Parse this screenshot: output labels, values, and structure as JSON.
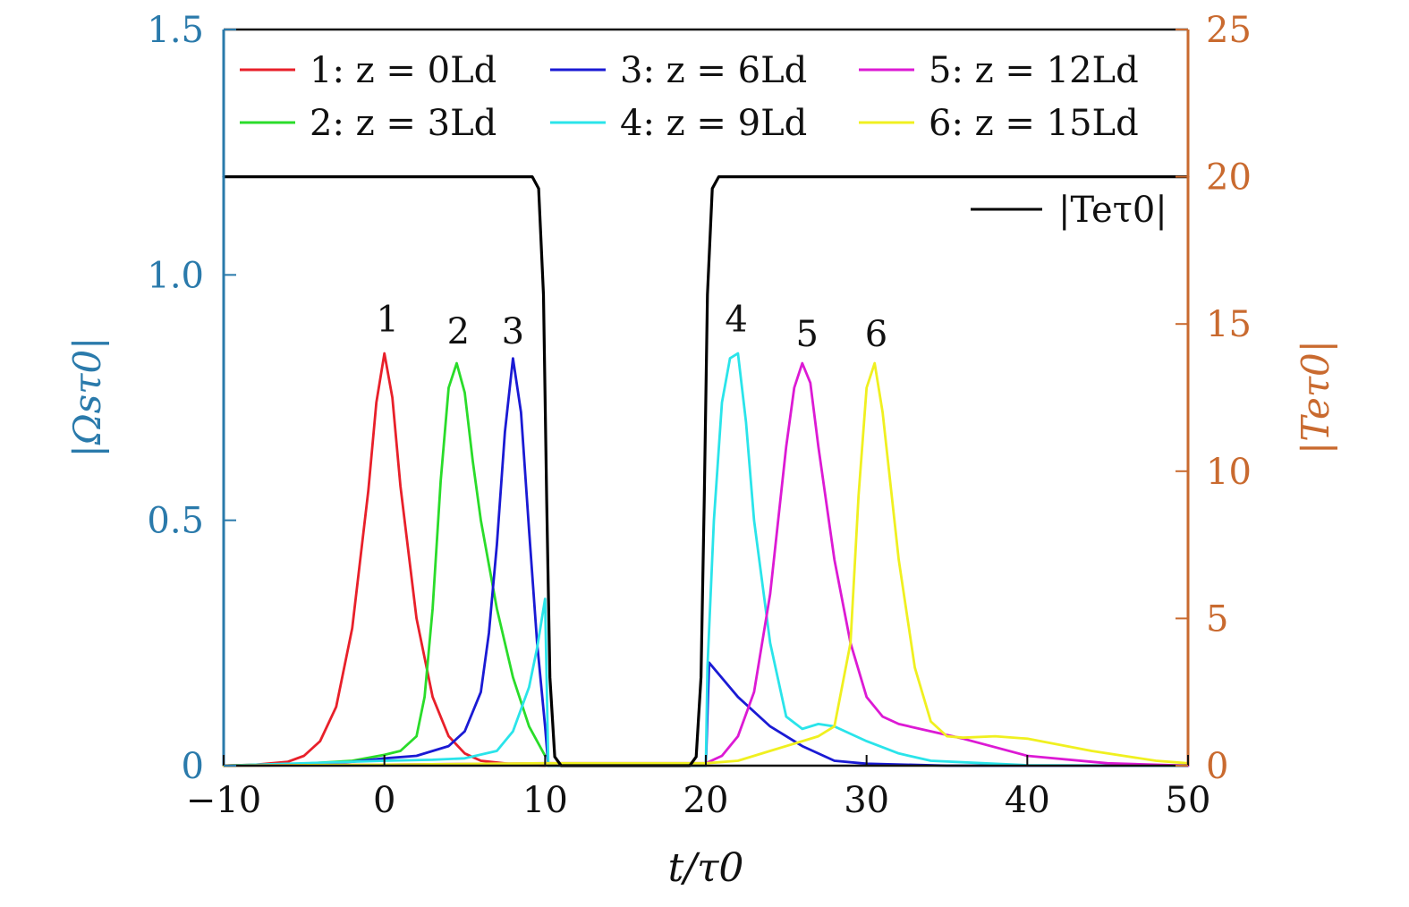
{
  "chart_data": {
    "type": "line",
    "xlabel": "t/τ0",
    "ylabel_left": "|Ωsτ0|",
    "ylabel_right": "|Teτ0|",
    "xlim": [
      -10,
      50
    ],
    "ylim_left": [
      0,
      1.5
    ],
    "ylim_right": [
      0,
      25
    ],
    "x_ticks": [
      -10,
      0,
      10,
      20,
      30,
      40,
      50
    ],
    "x_tick_labels": [
      "−10",
      "0",
      "10",
      "20",
      "30",
      "40",
      "50"
    ],
    "y_left_ticks": [
      0,
      0.5,
      1.0,
      1.5
    ],
    "y_left_tick_labels": [
      "0",
      "0.5",
      "1.0",
      "1.5"
    ],
    "y_right_ticks": [
      0,
      5,
      10,
      15,
      20,
      25
    ],
    "y_right_tick_labels": [
      "0",
      "5",
      "10",
      "15",
      "20",
      "25"
    ],
    "legend_placement": "top, two rows",
    "colors": {
      "left_axis": "#2a7aab",
      "right_axis": "#c96a2f"
    },
    "series": [
      {
        "name": "1: z = 0Ld",
        "label": "1",
        "color": "#e8202a",
        "axis": "left",
        "x": [
          -10,
          -8,
          -6,
          -5,
          -4,
          -3,
          -2,
          -1,
          -0.5,
          0,
          0.5,
          1,
          2,
          3,
          4,
          5,
          6,
          8,
          10
        ],
        "y": [
          0.0,
          0.002,
          0.008,
          0.02,
          0.05,
          0.12,
          0.28,
          0.56,
          0.74,
          0.84,
          0.75,
          0.57,
          0.3,
          0.14,
          0.06,
          0.025,
          0.01,
          0.003,
          0.0
        ]
      },
      {
        "name": "2: z = 3Ld",
        "label": "2",
        "color": "#2adc2a",
        "axis": "left",
        "x": [
          -10,
          -5,
          -2,
          0,
          1,
          2,
          2.5,
          3,
          3.5,
          4,
          4.5,
          5,
          5.5,
          6,
          7,
          8,
          9,
          10
        ],
        "y": [
          0.0,
          0.004,
          0.01,
          0.022,
          0.03,
          0.06,
          0.14,
          0.32,
          0.58,
          0.77,
          0.82,
          0.76,
          0.62,
          0.5,
          0.32,
          0.18,
          0.08,
          0.02
        ]
      },
      {
        "name": "3: z = 6Ld",
        "label": "3",
        "color": "#1a1ad4",
        "axis": "left",
        "x": [
          -10,
          -5,
          -2,
          0,
          2,
          4,
          5,
          6,
          6.5,
          7,
          7.5,
          8,
          8.5,
          9,
          9.5,
          10,
          10.2,
          20,
          20.2,
          22,
          24,
          26,
          28,
          30,
          35,
          50
        ],
        "y": [
          0.0,
          0.002,
          0.008,
          0.015,
          0.02,
          0.04,
          0.07,
          0.15,
          0.27,
          0.45,
          0.68,
          0.83,
          0.72,
          0.48,
          0.25,
          0.08,
          0.0,
          0.0,
          0.21,
          0.14,
          0.08,
          0.04,
          0.01,
          0.004,
          0.0,
          0.0
        ]
      },
      {
        "name": "4: z = 9Ld",
        "label": "4",
        "color": "#2ae4ea",
        "axis": "left",
        "x": [
          -10,
          -5,
          0,
          3,
          5,
          7,
          8,
          9,
          9.5,
          10,
          10.2,
          20,
          20.1,
          20.5,
          21,
          21.5,
          22,
          22.5,
          23,
          24,
          25,
          26,
          27,
          28,
          30,
          32,
          34,
          40,
          50
        ],
        "y": [
          0.0,
          0.005,
          0.01,
          0.012,
          0.015,
          0.03,
          0.07,
          0.16,
          0.24,
          0.34,
          0.0,
          0.0,
          0.2,
          0.5,
          0.74,
          0.83,
          0.84,
          0.7,
          0.5,
          0.25,
          0.1,
          0.075,
          0.085,
          0.08,
          0.05,
          0.025,
          0.01,
          0.001,
          0.0
        ]
      },
      {
        "name": "5: z = 12Ld",
        "label": "5",
        "color": "#dc1ad4",
        "axis": "left",
        "x": [
          -10,
          0,
          10,
          20,
          21,
          22,
          23,
          24,
          25,
          25.5,
          26,
          26.5,
          27,
          28,
          29,
          30,
          31,
          32,
          34,
          36,
          40,
          45,
          50
        ],
        "y": [
          0.0,
          0.002,
          0.005,
          0.005,
          0.02,
          0.06,
          0.15,
          0.35,
          0.65,
          0.77,
          0.82,
          0.78,
          0.65,
          0.42,
          0.25,
          0.14,
          0.1,
          0.085,
          0.07,
          0.055,
          0.02,
          0.005,
          0.0
        ]
      },
      {
        "name": "6: z = 15Ld",
        "label": "6",
        "color": "#f0f020",
        "axis": "left",
        "x": [
          -10,
          0,
          10,
          20,
          22,
          24,
          26,
          27,
          28,
          29,
          29.5,
          30,
          30.5,
          31,
          32,
          33,
          34,
          35,
          36,
          38,
          40,
          44,
          48,
          50
        ],
        "y": [
          0.0,
          0.002,
          0.005,
          0.005,
          0.01,
          0.03,
          0.05,
          0.06,
          0.08,
          0.25,
          0.55,
          0.77,
          0.82,
          0.72,
          0.42,
          0.2,
          0.09,
          0.06,
          0.057,
          0.06,
          0.055,
          0.03,
          0.01,
          0.005
        ]
      },
      {
        "name": "|Teτ0|",
        "label": "",
        "color": "#000000",
        "axis": "right",
        "x": [
          -10,
          9.2,
          9.6,
          9.9,
          10.1,
          10.3,
          10.6,
          11,
          19,
          19.4,
          19.7,
          19.9,
          20.1,
          20.4,
          20.8,
          50
        ],
        "y": [
          20,
          20,
          19.6,
          16,
          9,
          3,
          0.3,
          0,
          0,
          0.3,
          3,
          9,
          16,
          19.6,
          20,
          20
        ]
      }
    ],
    "peak_labels": [
      {
        "text": "1",
        "x": 0.2,
        "y": 0.885
      },
      {
        "text": "2",
        "x": 4.6,
        "y": 0.86
      },
      {
        "text": "3",
        "x": 8.0,
        "y": 0.86
      },
      {
        "text": "4",
        "x": 21.9,
        "y": 0.885
      },
      {
        "text": "5",
        "x": 26.3,
        "y": 0.855
      },
      {
        "text": "6",
        "x": 30.6,
        "y": 0.855
      }
    ]
  }
}
